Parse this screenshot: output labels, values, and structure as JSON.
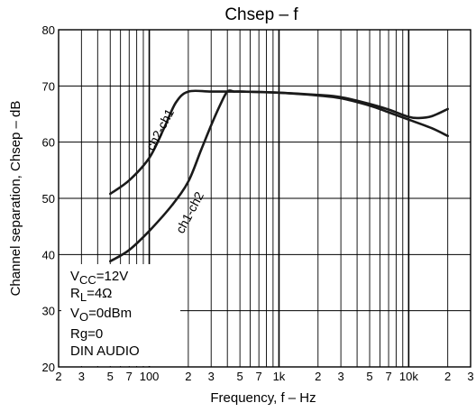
{
  "chart_data": {
    "type": "line",
    "title": "Chsep – f",
    "xlabel": "Frequency,  f – Hz",
    "ylabel": "Channel separation,  Chsep – dB",
    "x_scale": "log",
    "xlim": [
      20,
      30000
    ],
    "ylim": [
      20,
      80
    ],
    "grid": true,
    "x_tick_labels": [
      {
        "v": 20,
        "t": "2"
      },
      {
        "v": 30,
        "t": "3"
      },
      {
        "v": 50,
        "t": "5"
      },
      {
        "v": 70,
        "t": "7"
      },
      {
        "v": 100,
        "t": "100"
      },
      {
        "v": 200,
        "t": "2"
      },
      {
        "v": 300,
        "t": "3"
      },
      {
        "v": 500,
        "t": "5"
      },
      {
        "v": 700,
        "t": "7"
      },
      {
        "v": 1000,
        "t": "1k"
      },
      {
        "v": 2000,
        "t": "2"
      },
      {
        "v": 3000,
        "t": "3"
      },
      {
        "v": 5000,
        "t": "5"
      },
      {
        "v": 7000,
        "t": "7"
      },
      {
        "v": 10000,
        "t": "10k"
      },
      {
        "v": 20000,
        "t": "2"
      },
      {
        "v": 30000,
        "t": "3"
      }
    ],
    "y_tick_labels": [
      {
        "v": 20,
        "t": "20"
      },
      {
        "v": 30,
        "t": "30"
      },
      {
        "v": 40,
        "t": "40"
      },
      {
        "v": 50,
        "t": "50"
      },
      {
        "v": 60,
        "t": "60"
      },
      {
        "v": 70,
        "t": "70"
      },
      {
        "v": 80,
        "t": "80"
      }
    ],
    "series": [
      {
        "name": "ch2-ch1",
        "x": [
          50,
          70,
          100,
          130,
          160,
          200,
          300,
          500,
          1000,
          2000,
          3000,
          5000,
          7000,
          10000,
          12000,
          15000,
          20000
        ],
        "y": [
          50.8,
          53.2,
          57.2,
          62.5,
          67.0,
          69.0,
          69.0,
          69.0,
          68.8,
          68.4,
          68.0,
          66.8,
          65.8,
          64.5,
          64.3,
          64.6,
          65.9
        ]
      },
      {
        "name": "ch1-ch2",
        "x": [
          50,
          70,
          100,
          150,
          200,
          250,
          300,
          350,
          400,
          450,
          500,
          1000,
          2000,
          3000,
          5000,
          7000,
          10000,
          15000,
          20000
        ],
        "y": [
          38.8,
          40.8,
          44.2,
          48.8,
          53.0,
          58.5,
          63.0,
          66.5,
          69.0,
          69.0,
          69.0,
          68.8,
          68.3,
          67.8,
          66.5,
          65.3,
          64.0,
          62.5,
          61.1
        ]
      }
    ],
    "legend_box": {
      "vcc_main": "V",
      "vcc_sub": "CC",
      "vcc_val": "=12V",
      "rl_main": "R",
      "rl_sub": "L",
      "rl_val": "=4Ω",
      "vo_main": "V",
      "vo_sub": "O",
      "vo_val": "=0dBm",
      "rg": "Rg=0",
      "din": "DIN AUDIO"
    }
  }
}
